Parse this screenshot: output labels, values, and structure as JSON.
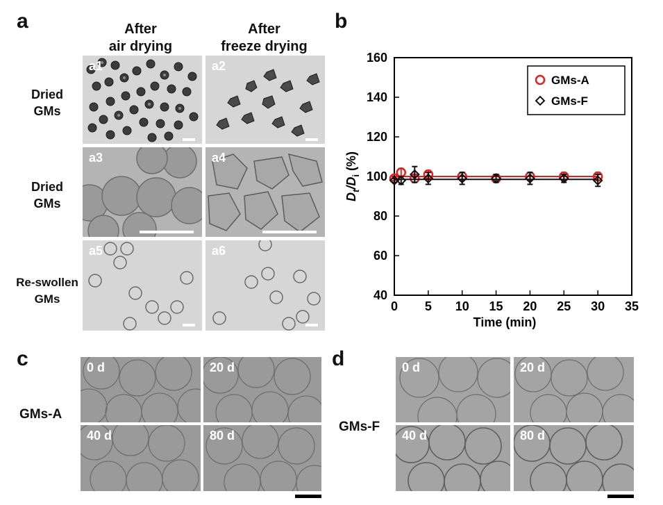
{
  "panel_letters": {
    "a": "a",
    "b": "b",
    "c": "c",
    "d": "d"
  },
  "panel_a": {
    "col_headers": [
      "After\nair drying",
      "After\nfreeze drying"
    ],
    "col_header_lines": [
      [
        "After",
        "air drying"
      ],
      [
        "After",
        "freeze drying"
      ]
    ],
    "row_labels": [
      [
        "Dried",
        "GMs"
      ],
      [
        "Dried",
        "GMs"
      ],
      [
        "Re-swollen",
        "GMs"
      ]
    ],
    "tiles": [
      "a1",
      "a2",
      "a3",
      "a4",
      "a5",
      "a6"
    ]
  },
  "panel_c": {
    "label": "GMs-A",
    "tiles": [
      "0 d",
      "20 d",
      "40 d",
      "80 d"
    ]
  },
  "panel_d": {
    "label": "GMs-F",
    "tiles": [
      "0 d",
      "20 d",
      "40 d",
      "80 d"
    ]
  },
  "colors": {
    "gms_a": "#e02020",
    "gms_f": "#111111"
  },
  "chart_data": {
    "type": "scatter",
    "xlabel": "Time (min)",
    "ylabel_main": "D",
    "ylabel_sub1": "t",
    "ylabel_slash": "/D",
    "ylabel_sub2": "i",
    "ylabel_unit": " (%)",
    "xlim": [
      0,
      35
    ],
    "ylim": [
      40,
      160
    ],
    "xticks": [
      0,
      5,
      10,
      15,
      20,
      25,
      30,
      35
    ],
    "yticks": [
      40,
      60,
      80,
      100,
      120,
      140,
      160
    ],
    "legend_position": "top-right",
    "series": [
      {
        "name": "GMs-A",
        "marker": "circle",
        "color": "#e02020",
        "x": [
          0,
          1,
          3,
          5,
          10,
          15,
          20,
          25,
          30
        ],
        "y": [
          99,
          102,
          99,
          101,
          100,
          99,
          100,
          100,
          100
        ],
        "err": [
          1,
          2,
          2,
          2,
          2,
          2,
          2,
          2,
          2
        ],
        "fit_y": 100
      },
      {
        "name": "GMs-F",
        "marker": "diamond",
        "color": "#111111",
        "x": [
          0,
          1,
          3,
          5,
          10,
          15,
          20,
          25,
          30
        ],
        "y": [
          98,
          98,
          101,
          99,
          99,
          99,
          99,
          99,
          98
        ],
        "err": [
          1,
          2,
          4,
          3,
          3,
          2,
          3,
          2,
          3
        ],
        "fit_y": 98.5
      }
    ]
  }
}
